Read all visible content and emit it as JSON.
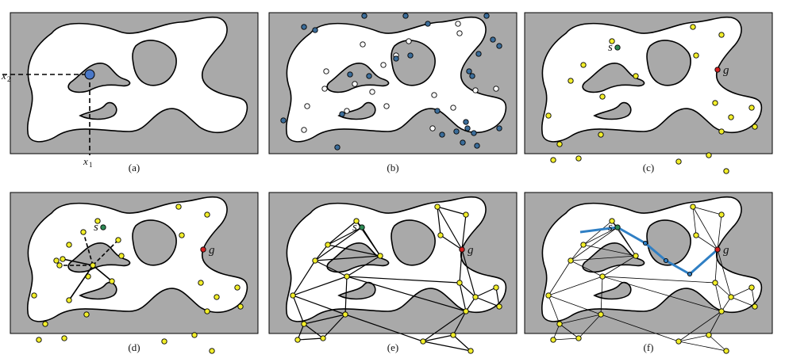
{
  "panels": [
    {
      "id": "a",
      "caption": "(a)"
    },
    {
      "id": "b",
      "caption": "(b)"
    },
    {
      "id": "c",
      "caption": "(c)"
    },
    {
      "id": "d",
      "caption": "(d)"
    },
    {
      "id": "e",
      "caption": "(e)"
    },
    {
      "id": "f",
      "caption": "(f)"
    }
  ],
  "axis_labels": {
    "x1": "x",
    "x1_sub": "1",
    "x2": "x",
    "x2_sub": "2"
  },
  "markers": {
    "start": "s",
    "goal": "g"
  },
  "colors": {
    "obstacle": "#a9a9a9",
    "free_space": "#ffffff",
    "outline": "#000000",
    "sample_free": "#ffffff",
    "sample_collision": "#3b6d9a",
    "milestone": "#f2ee2a",
    "start": "#2d8a55",
    "goal": "#d42020",
    "path": "#2f7fc4",
    "query_point": "#4a78c8"
  }
}
